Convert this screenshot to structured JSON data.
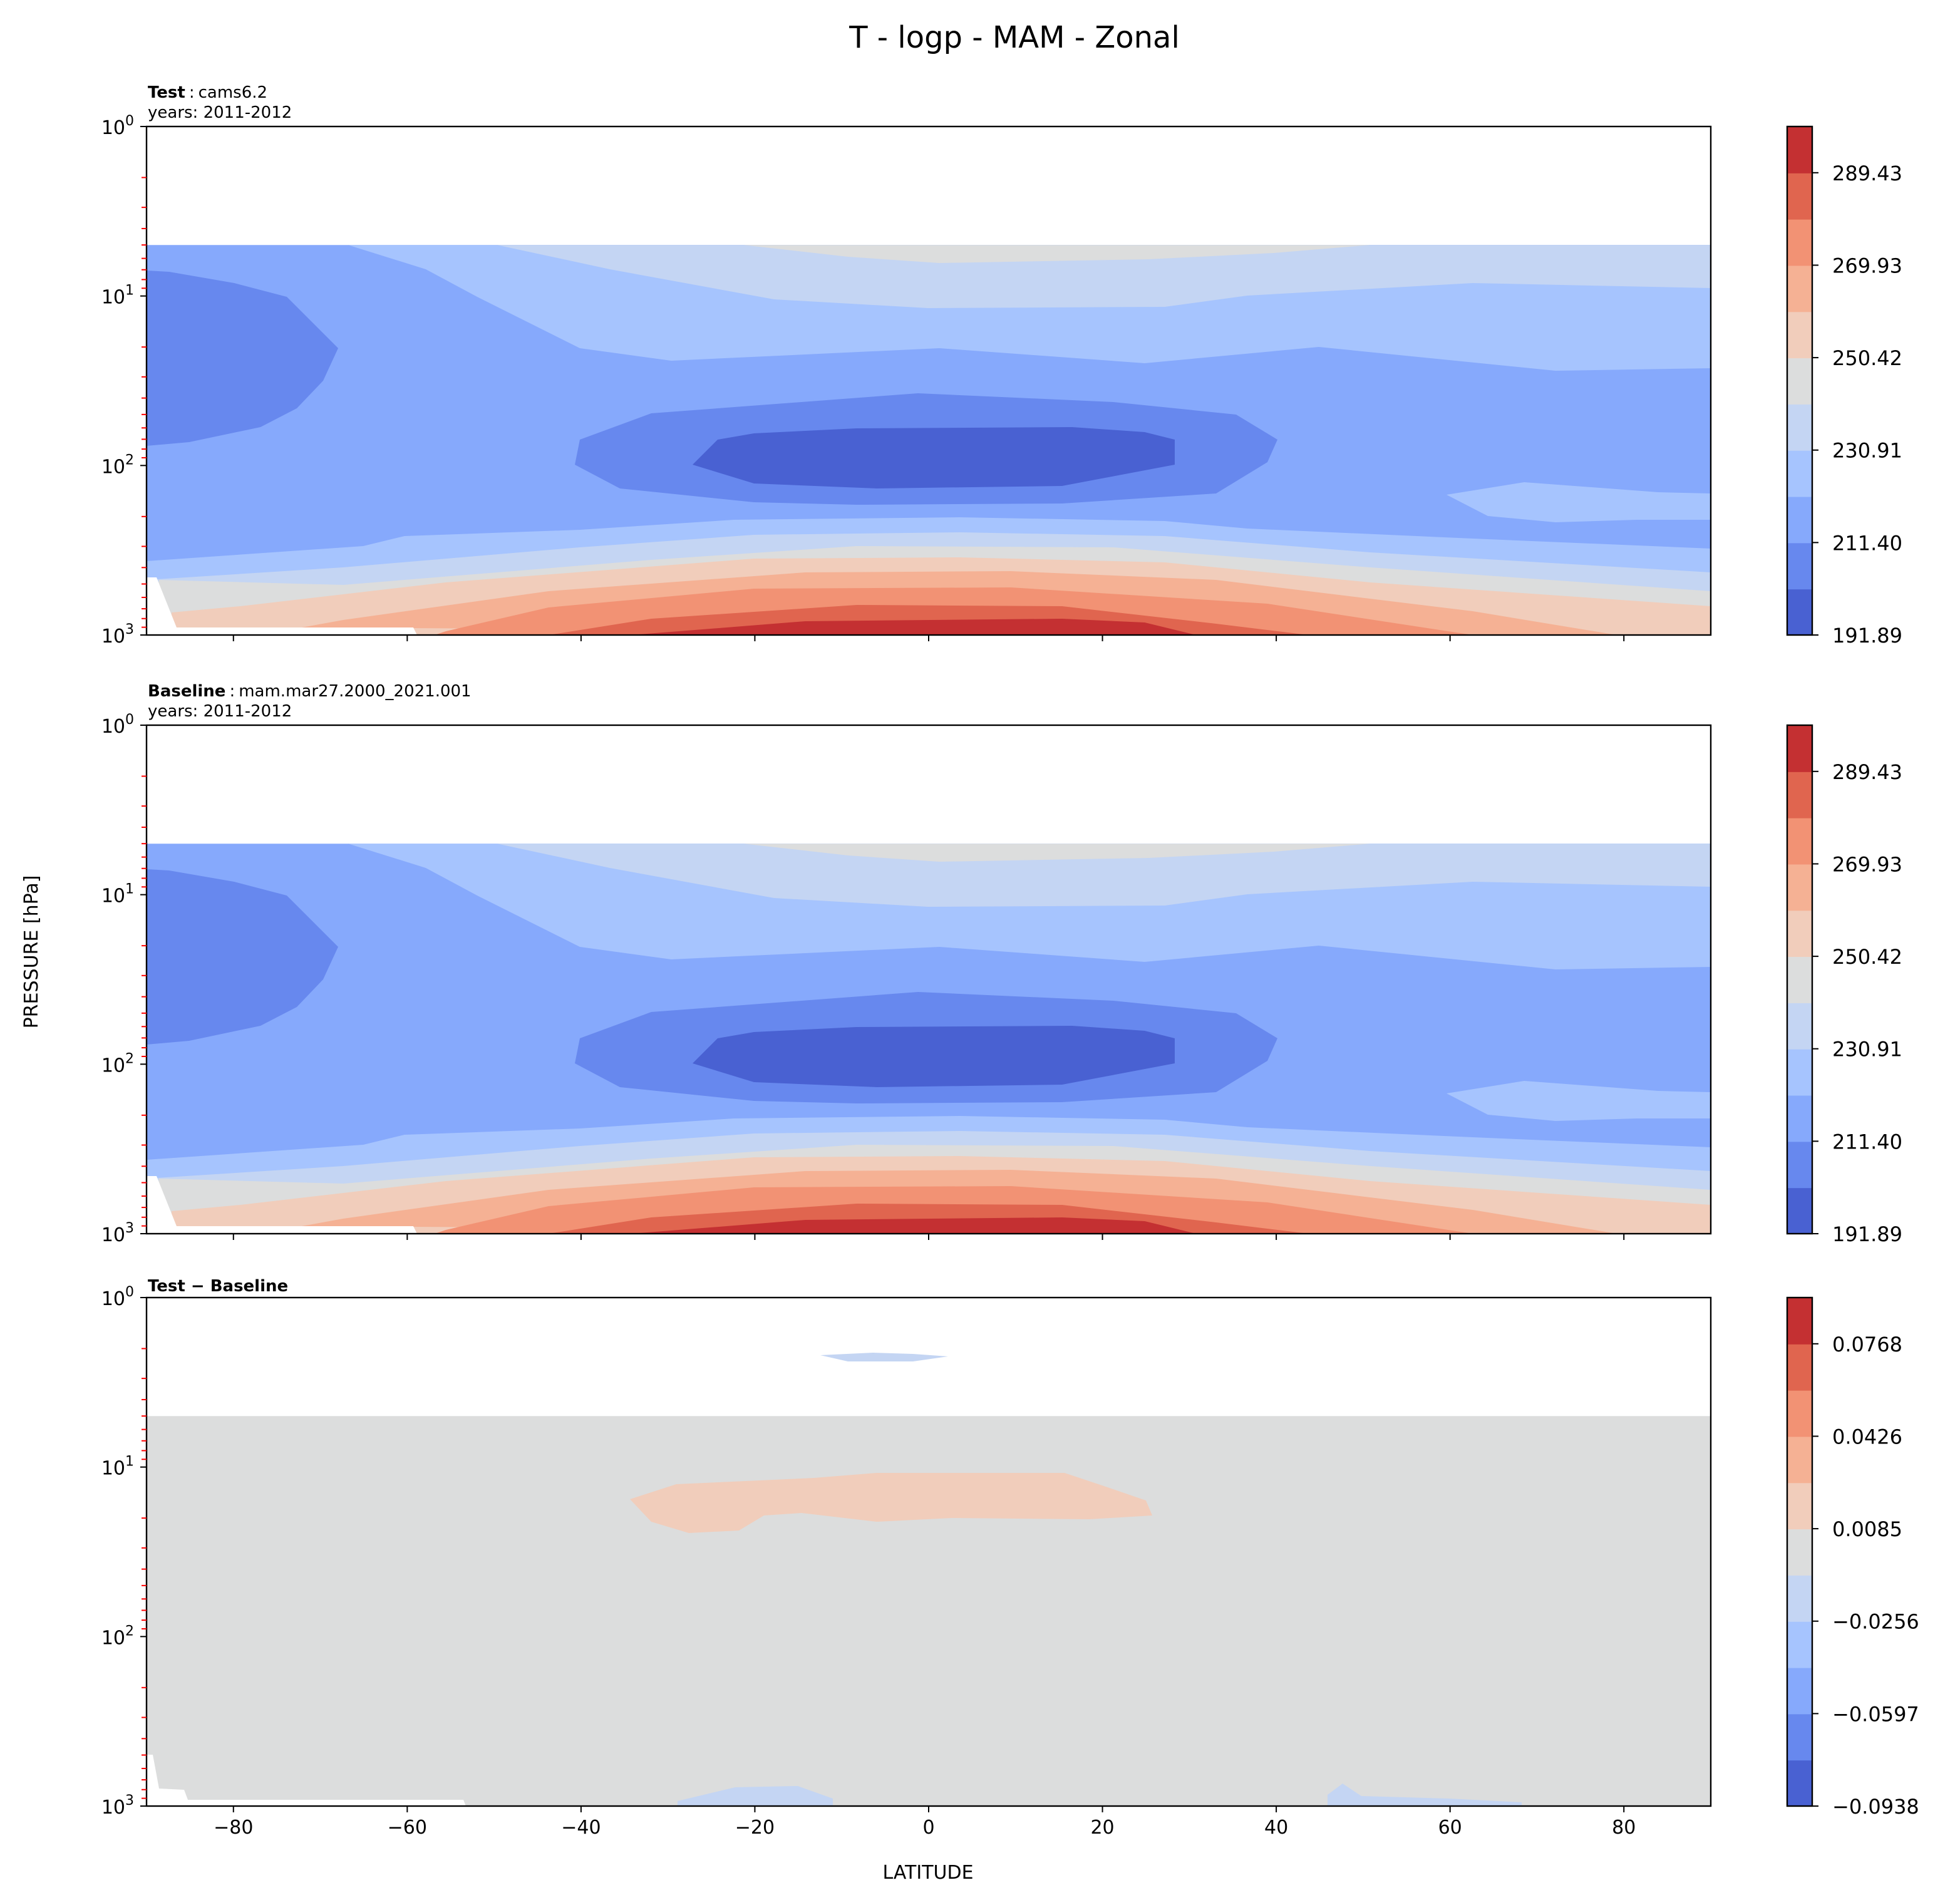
{
  "chart_data": {
    "type": "heatmap",
    "subtype": "filled-contour",
    "title": "T - logp - MAM - Zonal",
    "xlabel": "LATITUDE",
    "ylabel": "PRESSURE [hPa]",
    "xlim": [
      -90,
      90
    ],
    "ylim": [
      1000,
      1
    ],
    "yscale": "log",
    "data_top_pressure_hPa": 5,
    "x_ticks": [
      -80,
      -60,
      -40,
      -20,
      0,
      20,
      40,
      60,
      80
    ],
    "x_tick_labels": [
      "−80",
      "−60",
      "−40",
      "−20",
      "0",
      "20",
      "40",
      "60",
      "80"
    ],
    "y_ticks": [
      1,
      10,
      100,
      1000
    ],
    "y_tick_labels": [
      {
        "base": "10",
        "exp": "0"
      },
      {
        "base": "10",
        "exp": "1"
      },
      {
        "base": "10",
        "exp": "2"
      },
      {
        "base": "10",
        "exp": "3"
      }
    ],
    "minor_tick_color": "#ff0000",
    "colormap": [
      "#4961d2",
      "#6788ee",
      "#86a9fc",
      "#a6c4fe",
      "#c4d5f3",
      "#dcdddd",
      "#f1cdbb",
      "#f5b194",
      "#f29274",
      "#e0654f",
      "#c43032"
    ],
    "panels": [
      {
        "name": "test",
        "title_bold": "Test",
        "title_sep": ":",
        "title_value": "cams6.2",
        "years": "years: 2011-2012",
        "levels_min": 191.89,
        "levels_step": 9.755,
        "n_levels": 11,
        "colorbar_ticks": [
          "191.89",
          "211.40",
          "230.91",
          "250.42",
          "269.93",
          "289.43"
        ],
        "field_summary": "Cold tropical tropopause minimum (~192-202 K) near 100 hPa, 0-25N/S; warmest (>289 K) surface tropics; cold polar vortex at -90 to -70 lat near 10-70 hPa"
      },
      {
        "name": "baseline",
        "title_bold": "Baseline",
        "title_sep": ":",
        "title_value": "mam.mar27.2000_2021.001",
        "years": "years: 2011-2012",
        "levels_min": 191.89,
        "levels_step": 9.755,
        "n_levels": 11,
        "colorbar_ticks": [
          "191.89",
          "211.40",
          "230.91",
          "250.42",
          "269.93",
          "289.43"
        ],
        "field_summary": "Nearly identical to Test"
      },
      {
        "name": "difference",
        "title_bold": "Test − Baseline",
        "title_sep": "",
        "title_value": "",
        "years": "",
        "levels_min": -0.0938,
        "levels_step": 0.01706,
        "n_levels": 11,
        "colorbar_ticks": [
          "−0.0938",
          "−0.0597",
          "−0.0256",
          "0.0085",
          "0.0426",
          "0.0768"
        ],
        "field_summary": "Mostly ~0 (0.0085 band); small positive (~0.01-0.03) patch 20-60 hPa from -35 to 25 lat; small negative patches near 70 hPa and near surface"
      }
    ]
  }
}
